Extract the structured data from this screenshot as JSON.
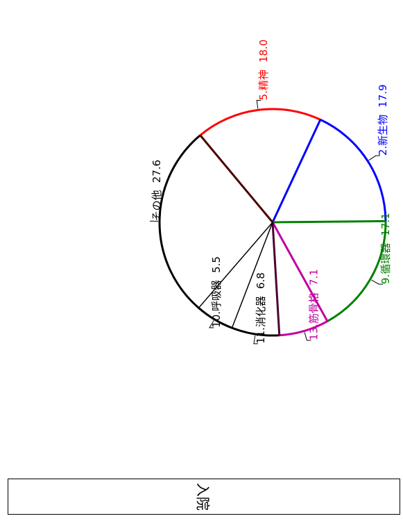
{
  "chart_data": {
    "type": "pie",
    "orientation": "rotated 90 degrees clockwise",
    "slices": [
      {
        "label": "2.新生物",
        "value": 17.9,
        "color": "#0000ff",
        "value_text": "17.9"
      },
      {
        "label": "9.循環器",
        "value": 17.1,
        "color": "#008000",
        "value_text": "17.1"
      },
      {
        "label": "13.筋骨格",
        "value": 7.1,
        "color": "#c000a0",
        "value_text": "7.1"
      },
      {
        "label": "11.消化器",
        "value": 6.8,
        "color": "#000000",
        "value_text": "6.8"
      },
      {
        "label": "10.呼吸器",
        "value": 5.5,
        "color": "#000000",
        "value_text": "5.5"
      },
      {
        "label": "その他",
        "value": 27.6,
        "color": "#000000",
        "value_text": "27.6"
      },
      {
        "label": "5.精神",
        "value": 18.0,
        "color": "#ff0000",
        "value_text": "18.0"
      }
    ],
    "inner_lines": [
      {
        "color": "#0000ff"
      },
      {
        "color": "#008000"
      },
      {
        "color": "#c000a0"
      },
      {
        "color": "#4b0033"
      },
      {
        "color": "#000000"
      },
      {
        "color": "#000000"
      },
      {
        "color": "#4b0000"
      }
    ]
  },
  "caption": {
    "text": "入院"
  }
}
